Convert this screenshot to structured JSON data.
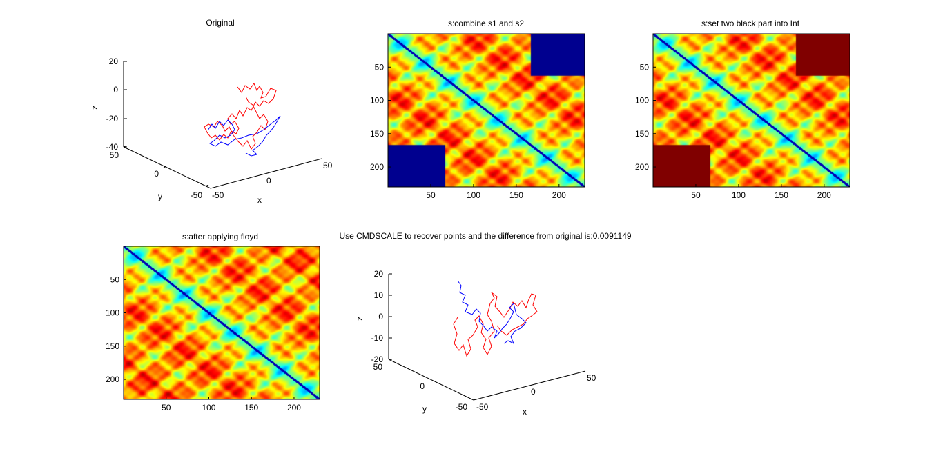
{
  "chart_data": [
    {
      "id": "p1",
      "type": "line3d",
      "title": "Original",
      "xlabel": "x",
      "ylabel": "y",
      "zlabel": "z",
      "xlim": [
        -50,
        50
      ],
      "ylim": [
        -50,
        50
      ],
      "zlim": [
        -40,
        20
      ],
      "x_ticks": [
        "-50",
        "0",
        "50"
      ],
      "y_ticks": [
        "-50",
        "0",
        "50"
      ],
      "z_ticks": [
        "-40",
        "-20",
        "0",
        "20"
      ],
      "series": [
        {
          "color": "#ff0000"
        },
        {
          "color": "#0000ff"
        }
      ]
    },
    {
      "id": "p2",
      "type": "heatmap",
      "title": "s:combine s1 and s2",
      "x_ticks": [
        "50",
        "100",
        "150",
        "200"
      ],
      "y_ticks": [
        "50",
        "100",
        "150",
        "200"
      ],
      "xlim": [
        0,
        230
      ],
      "ylim": [
        0,
        230
      ],
      "colormap": "jet",
      "blocks": [
        {
          "x": [
            167,
            230
          ],
          "y": [
            0,
            63
          ],
          "color": "#00008f"
        },
        {
          "x": [
            0,
            67
          ],
          "y": [
            167,
            230
          ],
          "color": "#00008f"
        }
      ]
    },
    {
      "id": "p3",
      "type": "heatmap",
      "title": "s:set two black part into Inf",
      "x_ticks": [
        "50",
        "100",
        "150",
        "200"
      ],
      "y_ticks": [
        "50",
        "100",
        "150",
        "200"
      ],
      "xlim": [
        0,
        230
      ],
      "ylim": [
        0,
        230
      ],
      "colormap": "jet",
      "blocks": [
        {
          "x": [
            167,
            230
          ],
          "y": [
            0,
            63
          ],
          "color": "#800000"
        },
        {
          "x": [
            0,
            67
          ],
          "y": [
            167,
            230
          ],
          "color": "#800000"
        }
      ]
    },
    {
      "id": "p4",
      "type": "heatmap",
      "title": "s:after applying floyd",
      "x_ticks": [
        "50",
        "100",
        "150",
        "200"
      ],
      "y_ticks": [
        "50",
        "100",
        "150",
        "200"
      ],
      "xlim": [
        0,
        230
      ],
      "ylim": [
        0,
        230
      ],
      "colormap": "jet",
      "blocks": []
    },
    {
      "id": "p5",
      "type": "line3d",
      "title": "Use CMDSCALE to recover points and the difference from original is:0.0091149",
      "xlabel": "x",
      "ylabel": "y",
      "zlabel": "z",
      "xlim": [
        -50,
        50
      ],
      "ylim": [
        -50,
        50
      ],
      "zlim": [
        -20,
        20
      ],
      "x_ticks": [
        "-50",
        "0",
        "50"
      ],
      "y_ticks": [
        "-50",
        "0",
        "50"
      ],
      "z_ticks": [
        "-20",
        "-10",
        "0",
        "10",
        "20"
      ],
      "series": [
        {
          "color": "#ff0000"
        },
        {
          "color": "#0000ff"
        }
      ]
    }
  ]
}
